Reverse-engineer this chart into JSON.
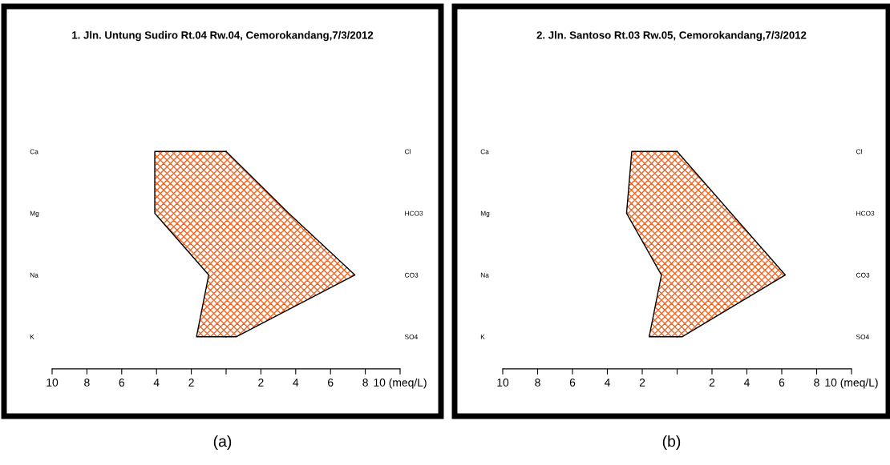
{
  "chart_data": [
    {
      "type": "area",
      "orientation": "horizontal",
      "title": "1. Jln. Untung Sudiro Rt.04 Rw.04, Cemorokandang,7/3/2012",
      "categories": [
        "Ca",
        "Mg",
        "Na",
        "K"
      ],
      "y2_categories": [
        "Cl",
        "HCO3",
        "CO3",
        "SO4"
      ],
      "series": [
        {
          "color": "#f26522",
          "values": [
            -4.1,
            -4.1,
            -1.0,
            -1.7
          ]
        },
        {
          "color": "#f26522",
          "values": [
            0,
            3.6,
            7.4,
            0.6
          ]
        }
      ],
      "xlim": [
        -10,
        10
      ],
      "xticks": [
        {
          "value": -10,
          "label": "10"
        },
        {
          "value": -8,
          "label": "8"
        },
        {
          "value": -6,
          "label": "6"
        },
        {
          "value": -4,
          "label": "4"
        },
        {
          "value": -2,
          "label": "2"
        },
        {
          "value": 0,
          "label": null
        },
        2,
        4,
        6,
        8,
        {
          "value": 10,
          "label": "10 (meq/L)"
        }
      ],
      "grid": false,
      "legend": false,
      "annotations": [
        "(a)"
      ]
    },
    {
      "type": "area",
      "orientation": "horizontal",
      "title": "2. Jln. Santoso Rt.03 Rw.05, Cemorokandang,7/3/2012",
      "categories": [
        "Ca",
        "Mg",
        "Na",
        "K"
      ],
      "y2_categories": [
        "Cl",
        "HCO3",
        "CO3",
        "SO4"
      ],
      "series": [
        {
          "color": "#f26522",
          "values": [
            -2.6,
            -2.9,
            -0.9,
            -1.6
          ]
        },
        {
          "color": "#f26522",
          "values": [
            0,
            3.1,
            6.2,
            0.3
          ]
        }
      ],
      "xlim": [
        -10,
        10
      ],
      "xticks": [
        {
          "value": -10,
          "label": "10"
        },
        {
          "value": -8,
          "label": "8"
        },
        {
          "value": -6,
          "label": "6"
        },
        {
          "value": -4,
          "label": "4"
        },
        {
          "value": -2,
          "label": "2"
        },
        {
          "value": 0,
          "label": null
        },
        2,
        4,
        6,
        8,
        {
          "value": 10,
          "label": "10 (meq/L)"
        }
      ],
      "grid": false,
      "legend": false,
      "annotations": [
        "(b)"
      ]
    }
  ]
}
